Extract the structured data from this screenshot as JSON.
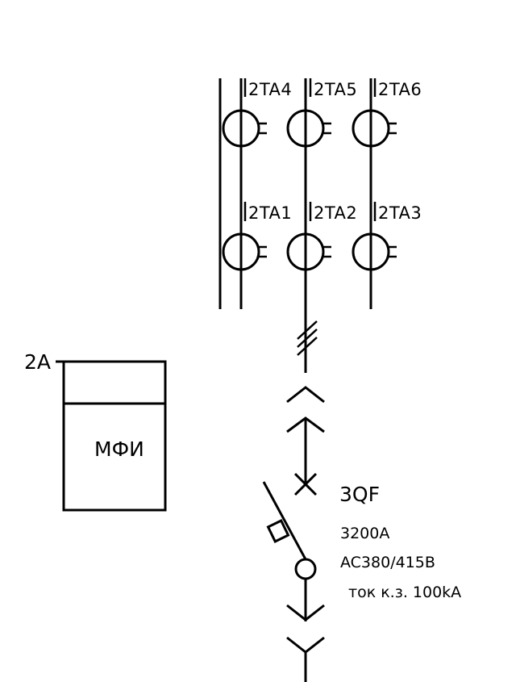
{
  "transformers": {
    "top": [
      "2TA4",
      "2TA5",
      "2TA6"
    ],
    "bottom": [
      "2TA1",
      "2TA2",
      "2TA3"
    ]
  },
  "device": {
    "tag": "2A",
    "name": "МФИ"
  },
  "breaker": {
    "tag": "3QF",
    "rating": "3200A",
    "voltage": "AC380/415B",
    "short_circuit": "ток к.з. 100kA"
  }
}
